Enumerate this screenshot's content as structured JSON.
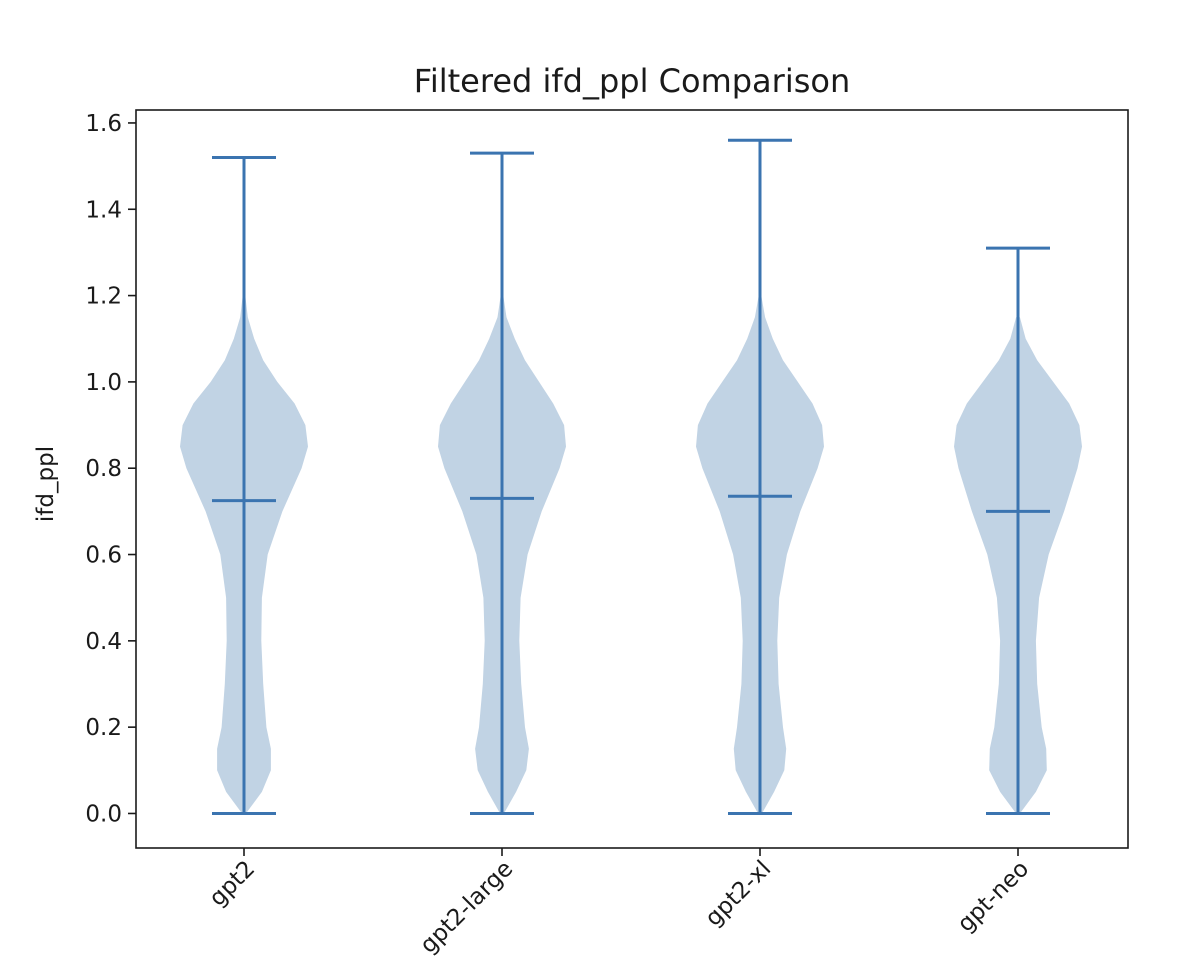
{
  "chart_data": {
    "type": "violin",
    "title": "Filtered ifd_ppl Comparison",
    "xlabel": "",
    "ylabel": "ifd_ppl",
    "ylim": [
      -0.08,
      1.63
    ],
    "yticks": [
      "0.0",
      "0.2",
      "0.4",
      "0.6",
      "0.8",
      "1.0",
      "1.2",
      "1.4",
      "1.6"
    ],
    "categories": [
      "gpt2",
      "gpt2-large",
      "gpt2-xl",
      "gpt-neo"
    ],
    "colors": {
      "body": "#c1d3e4",
      "line": "#3b74b0"
    },
    "series": [
      {
        "name": "gpt2",
        "min": 0.0,
        "median": 0.725,
        "max": 1.52,
        "density": [
          [
            0.0,
            0.03
          ],
          [
            0.05,
            0.28
          ],
          [
            0.1,
            0.42
          ],
          [
            0.15,
            0.42
          ],
          [
            0.2,
            0.35
          ],
          [
            0.3,
            0.3
          ],
          [
            0.4,
            0.27
          ],
          [
            0.5,
            0.28
          ],
          [
            0.6,
            0.37
          ],
          [
            0.7,
            0.6
          ],
          [
            0.8,
            0.9
          ],
          [
            0.85,
            1.0
          ],
          [
            0.9,
            0.96
          ],
          [
            0.95,
            0.79
          ],
          [
            1.0,
            0.52
          ],
          [
            1.05,
            0.3
          ],
          [
            1.1,
            0.16
          ],
          [
            1.15,
            0.06
          ],
          [
            1.2,
            0.02
          ]
        ]
      },
      {
        "name": "gpt2-large",
        "min": 0.0,
        "median": 0.73,
        "max": 1.53,
        "density": [
          [
            0.0,
            0.03
          ],
          [
            0.05,
            0.22
          ],
          [
            0.1,
            0.38
          ],
          [
            0.15,
            0.42
          ],
          [
            0.2,
            0.36
          ],
          [
            0.3,
            0.3
          ],
          [
            0.4,
            0.27
          ],
          [
            0.5,
            0.29
          ],
          [
            0.6,
            0.4
          ],
          [
            0.7,
            0.62
          ],
          [
            0.8,
            0.9
          ],
          [
            0.85,
            1.0
          ],
          [
            0.9,
            0.97
          ],
          [
            0.95,
            0.8
          ],
          [
            1.0,
            0.58
          ],
          [
            1.05,
            0.36
          ],
          [
            1.1,
            0.2
          ],
          [
            1.15,
            0.07
          ],
          [
            1.2,
            0.02
          ]
        ]
      },
      {
        "name": "gpt2-xl",
        "min": 0.0,
        "median": 0.735,
        "max": 1.56,
        "density": [
          [
            0.0,
            0.03
          ],
          [
            0.05,
            0.22
          ],
          [
            0.1,
            0.38
          ],
          [
            0.15,
            0.41
          ],
          [
            0.2,
            0.36
          ],
          [
            0.3,
            0.29
          ],
          [
            0.4,
            0.27
          ],
          [
            0.5,
            0.3
          ],
          [
            0.6,
            0.42
          ],
          [
            0.7,
            0.63
          ],
          [
            0.8,
            0.9
          ],
          [
            0.85,
            1.0
          ],
          [
            0.9,
            0.97
          ],
          [
            0.95,
            0.82
          ],
          [
            1.0,
            0.59
          ],
          [
            1.05,
            0.36
          ],
          [
            1.1,
            0.2
          ],
          [
            1.15,
            0.08
          ],
          [
            1.2,
            0.02
          ]
        ]
      },
      {
        "name": "gpt-neo",
        "min": 0.0,
        "median": 0.7,
        "max": 1.31,
        "density": [
          [
            0.0,
            0.03
          ],
          [
            0.05,
            0.28
          ],
          [
            0.1,
            0.45
          ],
          [
            0.15,
            0.44
          ],
          [
            0.2,
            0.37
          ],
          [
            0.3,
            0.3
          ],
          [
            0.4,
            0.28
          ],
          [
            0.5,
            0.33
          ],
          [
            0.6,
            0.48
          ],
          [
            0.7,
            0.72
          ],
          [
            0.8,
            0.93
          ],
          [
            0.85,
            1.0
          ],
          [
            0.9,
            0.96
          ],
          [
            0.95,
            0.8
          ],
          [
            1.0,
            0.55
          ],
          [
            1.05,
            0.3
          ],
          [
            1.1,
            0.12
          ],
          [
            1.15,
            0.03
          ]
        ]
      }
    ]
  }
}
